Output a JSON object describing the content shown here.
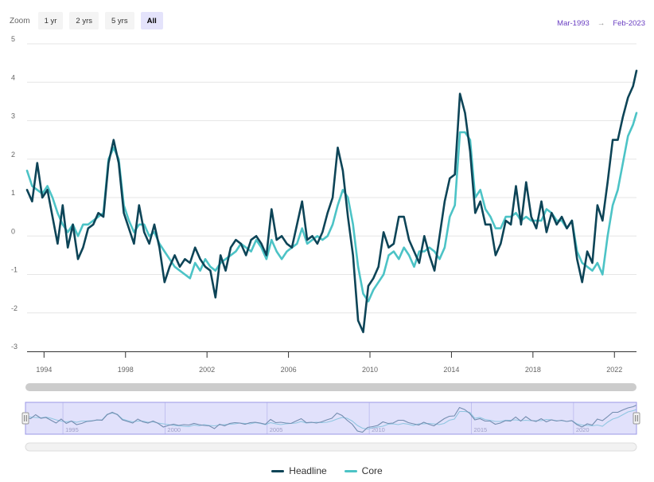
{
  "zoom": {
    "label": "Zoom",
    "buttons": [
      {
        "label": "1 yr"
      },
      {
        "label": "2 yrs"
      },
      {
        "label": "5 yrs"
      },
      {
        "label": "All",
        "active": true
      }
    ]
  },
  "range": {
    "from": "Mar-1993",
    "arrow": "→",
    "to": "Feb-2023"
  },
  "colors": {
    "headline": "#0d4457",
    "core": "#4cc3c6",
    "navigator_fill": "#c9c8f7",
    "navigator_border": "#9b98e6",
    "range_text": "#6a3fc2"
  },
  "legend": [
    {
      "name": "Headline",
      "color": "#0d4457"
    },
    {
      "name": "Core",
      "color": "#4cc3c6"
    }
  ],
  "chart_data": {
    "type": "line",
    "x_type": "date",
    "xlim": [
      "1993-03",
      "2023-02"
    ],
    "ylim": [
      -3,
      5
    ],
    "y_ticks": [
      "5",
      "4",
      "3",
      "2",
      "1",
      "0",
      "-1",
      "-2",
      "-3"
    ],
    "x_ticks": [
      "1994",
      "1998",
      "2002",
      "2006",
      "2010",
      "2014",
      "2018",
      "2022"
    ],
    "navigator_ticks": [
      "1995",
      "2000",
      "2005",
      "2010",
      "2015",
      "2020"
    ],
    "grid": true,
    "legend_position": "bottom",
    "series": [
      {
        "name": "Headline",
        "x": [
          "1993-03",
          "1993-06",
          "1993-09",
          "1993-12",
          "1994-03",
          "1994-06",
          "1994-09",
          "1994-12",
          "1995-03",
          "1995-06",
          "1995-09",
          "1995-12",
          "1996-03",
          "1996-06",
          "1996-09",
          "1996-12",
          "1997-03",
          "1997-06",
          "1997-09",
          "1997-12",
          "1998-03",
          "1998-06",
          "1998-09",
          "1998-12",
          "1999-03",
          "1999-06",
          "1999-09",
          "1999-12",
          "2000-03",
          "2000-06",
          "2000-09",
          "2000-12",
          "2001-03",
          "2001-06",
          "2001-09",
          "2001-12",
          "2002-03",
          "2002-06",
          "2002-09",
          "2002-12",
          "2003-03",
          "2003-06",
          "2003-09",
          "2003-12",
          "2004-03",
          "2004-06",
          "2004-09",
          "2004-12",
          "2005-03",
          "2005-06",
          "2005-09",
          "2005-12",
          "2006-03",
          "2006-06",
          "2006-09",
          "2006-12",
          "2007-03",
          "2007-06",
          "2007-09",
          "2007-12",
          "2008-03",
          "2008-06",
          "2008-09",
          "2008-12",
          "2009-03",
          "2009-06",
          "2009-09",
          "2009-12",
          "2010-03",
          "2010-06",
          "2010-09",
          "2010-12",
          "2011-03",
          "2011-06",
          "2011-09",
          "2011-12",
          "2012-03",
          "2012-06",
          "2012-09",
          "2012-12",
          "2013-03",
          "2013-06",
          "2013-09",
          "2013-12",
          "2014-03",
          "2014-06",
          "2014-09",
          "2014-12",
          "2015-03",
          "2015-06",
          "2015-09",
          "2015-12",
          "2016-03",
          "2016-06",
          "2016-09",
          "2016-12",
          "2017-03",
          "2017-06",
          "2017-09",
          "2017-12",
          "2018-03",
          "2018-06",
          "2018-09",
          "2018-12",
          "2019-03",
          "2019-06",
          "2019-09",
          "2019-12",
          "2020-03",
          "2020-06",
          "2020-09",
          "2020-12",
          "2021-03",
          "2021-06",
          "2021-09",
          "2021-12",
          "2022-03",
          "2022-06",
          "2022-09",
          "2022-12",
          "2023-02"
        ],
        "values": [
          1.2,
          0.9,
          1.9,
          1.0,
          1.2,
          0.5,
          -0.2,
          0.8,
          -0.3,
          0.3,
          -0.6,
          -0.3,
          0.2,
          0.3,
          0.6,
          0.5,
          1.9,
          2.5,
          1.9,
          0.6,
          0.2,
          -0.2,
          0.8,
          0.1,
          -0.2,
          0.3,
          -0.3,
          -1.2,
          -0.8,
          -0.5,
          -0.8,
          -0.6,
          -0.7,
          -0.3,
          -0.6,
          -0.8,
          -0.9,
          -1.6,
          -0.5,
          -0.9,
          -0.3,
          -0.1,
          -0.2,
          -0.5,
          -0.1,
          0.0,
          -0.2,
          -0.5,
          0.7,
          -0.1,
          0.0,
          -0.2,
          -0.3,
          0.3,
          0.9,
          -0.1,
          0.0,
          -0.2,
          0.1,
          0.6,
          1.0,
          2.3,
          1.7,
          0.5,
          -0.5,
          -2.2,
          -2.5,
          -1.3,
          -1.1,
          -0.8,
          0.1,
          -0.3,
          -0.2,
          0.5,
          0.5,
          -0.1,
          -0.4,
          -0.7,
          0.0,
          -0.5,
          -0.9,
          0.0,
          0.9,
          1.5,
          1.6,
          3.7,
          3.2,
          2.2,
          0.6,
          0.9,
          0.3,
          0.3,
          -0.5,
          -0.2,
          0.4,
          0.3,
          1.3,
          0.3,
          1.4,
          0.5,
          0.2,
          0.9,
          0.1,
          0.6,
          0.3,
          0.5,
          0.2,
          0.4,
          -0.6,
          -1.2,
          -0.4,
          -0.7,
          0.8,
          0.4,
          1.4,
          2.5,
          2.5,
          3.1,
          3.6,
          3.9,
          4.3
        ]
      },
      {
        "name": "Core",
        "x": [
          "1993-03",
          "1993-06",
          "1993-09",
          "1993-12",
          "1994-03",
          "1994-06",
          "1994-09",
          "1994-12",
          "1995-03",
          "1995-06",
          "1995-09",
          "1995-12",
          "1996-03",
          "1996-06",
          "1996-09",
          "1996-12",
          "1997-03",
          "1997-06",
          "1997-09",
          "1997-12",
          "1998-03",
          "1998-06",
          "1998-09",
          "1998-12",
          "1999-03",
          "1999-06",
          "1999-09",
          "1999-12",
          "2000-03",
          "2000-06",
          "2000-09",
          "2000-12",
          "2001-03",
          "2001-06",
          "2001-09",
          "2001-12",
          "2002-03",
          "2002-06",
          "2002-09",
          "2002-12",
          "2003-03",
          "2003-06",
          "2003-09",
          "2003-12",
          "2004-03",
          "2004-06",
          "2004-09",
          "2004-12",
          "2005-03",
          "2005-06",
          "2005-09",
          "2005-12",
          "2006-03",
          "2006-06",
          "2006-09",
          "2006-12",
          "2007-03",
          "2007-06",
          "2007-09",
          "2007-12",
          "2008-03",
          "2008-06",
          "2008-09",
          "2008-12",
          "2009-03",
          "2009-06",
          "2009-09",
          "2009-12",
          "2010-03",
          "2010-06",
          "2010-09",
          "2010-12",
          "2011-03",
          "2011-06",
          "2011-09",
          "2011-12",
          "2012-03",
          "2012-06",
          "2012-09",
          "2012-12",
          "2013-03",
          "2013-06",
          "2013-09",
          "2013-12",
          "2014-03",
          "2014-06",
          "2014-09",
          "2014-12",
          "2015-03",
          "2015-06",
          "2015-09",
          "2015-12",
          "2016-03",
          "2016-06",
          "2016-09",
          "2016-12",
          "2017-03",
          "2017-06",
          "2017-09",
          "2017-12",
          "2018-03",
          "2018-06",
          "2018-09",
          "2018-12",
          "2019-03",
          "2019-06",
          "2019-09",
          "2019-12",
          "2020-03",
          "2020-06",
          "2020-09",
          "2020-12",
          "2021-03",
          "2021-06",
          "2021-09",
          "2021-12",
          "2022-03",
          "2022-06",
          "2022-09",
          "2022-12",
          "2023-02"
        ],
        "values": [
          1.7,
          1.3,
          1.2,
          1.1,
          1.3,
          1.0,
          0.6,
          0.3,
          0.1,
          0.3,
          0.0,
          0.3,
          0.3,
          0.4,
          0.5,
          0.6,
          2.0,
          2.3,
          2.0,
          0.8,
          0.4,
          0.1,
          0.3,
          0.3,
          0.0,
          0.1,
          -0.2,
          -0.4,
          -0.6,
          -0.8,
          -0.9,
          -1.0,
          -1.1,
          -0.7,
          -0.9,
          -0.6,
          -0.8,
          -0.9,
          -0.7,
          -0.6,
          -0.5,
          -0.4,
          -0.2,
          -0.3,
          -0.4,
          -0.1,
          -0.3,
          -0.6,
          -0.1,
          -0.4,
          -0.6,
          -0.4,
          -0.3,
          -0.2,
          0.2,
          -0.2,
          -0.1,
          0.0,
          -0.1,
          0.0,
          0.3,
          0.8,
          1.2,
          1.0,
          0.3,
          -0.8,
          -1.5,
          -1.7,
          -1.4,
          -1.2,
          -1.0,
          -0.5,
          -0.4,
          -0.6,
          -0.3,
          -0.5,
          -0.8,
          -0.4,
          -0.4,
          -0.3,
          -0.4,
          -0.6,
          -0.3,
          0.5,
          0.8,
          2.7,
          2.7,
          2.5,
          1.0,
          1.2,
          0.7,
          0.5,
          0.2,
          0.2,
          0.5,
          0.5,
          0.6,
          0.4,
          0.5,
          0.4,
          0.4,
          0.4,
          0.7,
          0.6,
          0.4,
          0.4,
          0.2,
          0.4,
          -0.4,
          -0.7,
          -0.8,
          -0.9,
          -0.7,
          -1.0,
          0.0,
          0.8,
          1.2,
          1.9,
          2.6,
          2.9,
          3.2
        ]
      }
    ]
  }
}
